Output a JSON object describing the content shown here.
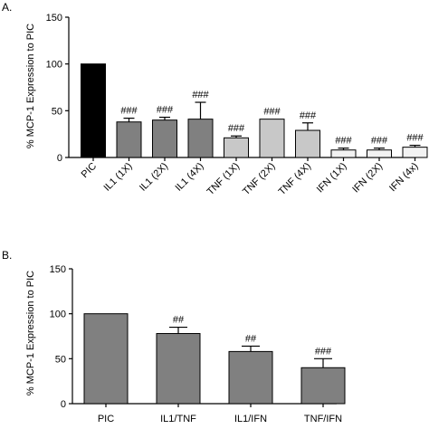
{
  "chart_data": [
    {
      "type": "bar",
      "panel_label": "A.",
      "title": "",
      "xlabel": "",
      "ylabel": "% MCP-1 Expression to PIC",
      "ylim": [
        0,
        150
      ],
      "yticks": [
        0,
        50,
        100,
        150
      ],
      "grid": false,
      "legend": "none",
      "categories": [
        "PIC",
        "IL1 (1X)",
        "IL1 (2X)",
        "IL1 (4X)",
        "TNF (1X)",
        "TNF (2X)",
        "TNF (4X)",
        "IFN (1X)",
        "IFN (2X)",
        "IFN (4x)"
      ],
      "values": [
        100,
        38,
        40,
        41,
        21,
        41,
        29,
        8,
        8,
        11
      ],
      "errors": [
        0,
        4,
        3,
        18,
        2,
        0,
        8,
        2,
        2,
        2
      ],
      "annotations": [
        "",
        "###",
        "###",
        "###",
        "###",
        "###",
        "###",
        "###",
        "###",
        "###"
      ],
      "bar_colors": [
        "#000000",
        "#808080",
        "#808080",
        "#808080",
        "#c8c8c8",
        "#c8c8c8",
        "#c8c8c8",
        "#f2f2f2",
        "#f2f2f2",
        "#f2f2f2"
      ]
    },
    {
      "type": "bar",
      "panel_label": "B.",
      "title": "",
      "xlabel": "",
      "ylabel": "% MCP-1 Expression to PIC",
      "ylim": [
        0,
        150
      ],
      "yticks": [
        0,
        50,
        100,
        150
      ],
      "grid": false,
      "legend": "none",
      "categories": [
        "PIC",
        "IL1/TNF",
        "IL1/IFN",
        "TNF/IFN"
      ],
      "values": [
        100,
        78,
        58,
        40
      ],
      "errors": [
        0,
        7,
        6,
        10
      ],
      "annotations": [
        "",
        "##",
        "##",
        "###"
      ],
      "bar_colors": [
        "#808080",
        "#808080",
        "#808080",
        "#808080"
      ]
    }
  ]
}
